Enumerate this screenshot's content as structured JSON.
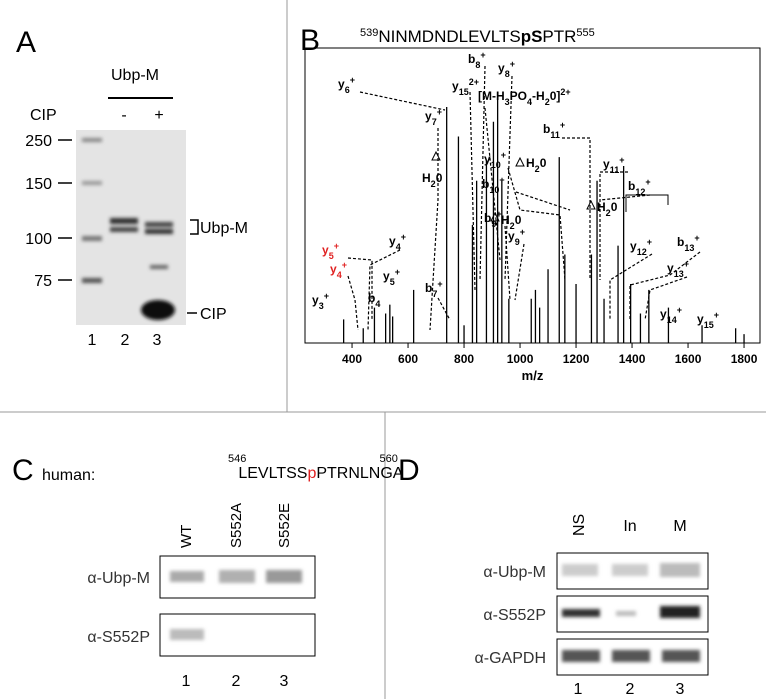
{
  "panels": {
    "A": {
      "label": "A",
      "treatment_header": "Ubp-M",
      "row_label": "CIP",
      "treatments": [
        "-",
        "+"
      ],
      "markers": [
        250,
        150,
        100,
        75
      ],
      "band_labels": [
        "Ubp-M",
        "CIP"
      ],
      "lanes": [
        1,
        2,
        3
      ]
    },
    "B": {
      "label": "B",
      "peptide": {
        "start": "539",
        "seq1": "NINMDNDLEVLTS",
        "site": "pS",
        "seq2": "PTR",
        "end": "555"
      },
      "spectrum": {
        "xlabel": "m/z",
        "xlim": [
          232,
          1857
        ],
        "ylim": [
          0,
          100
        ],
        "xticks": [
          400,
          600,
          800,
          1000,
          1200,
          1400,
          1600,
          1800
        ],
        "peaks_mz": [
          370,
          440,
          480,
          520,
          535,
          545,
          620,
          738,
          780,
          800,
          830,
          845,
          880,
          905,
          920,
          935,
          960,
          1040,
          1055,
          1070,
          1100,
          1140,
          1160,
          1200,
          1255,
          1275,
          1300,
          1350,
          1370,
          1395,
          1430,
          1460,
          1530,
          1650,
          1770,
          1800
        ],
        "peaks_intensity": [
          8,
          5,
          12,
          10,
          13,
          9,
          18,
          80,
          70,
          6,
          40,
          55,
          62,
          75,
          85,
          55,
          15,
          15,
          18,
          12,
          25,
          63,
          30,
          20,
          30,
          55,
          15,
          33,
          60,
          20,
          10,
          18,
          12,
          6,
          5,
          3
        ]
      },
      "ions": [
        {
          "parts": [
            {
              "t": "y"
            },
            {
              "t": "6",
              "sub": true
            },
            {
              "t": "+",
              "sup": true
            }
          ]
        },
        {
          "parts": [
            {
              "t": "y"
            },
            {
              "t": "15",
              "sub": true
            },
            {
              "t": "2+",
              "sup": true
            }
          ]
        },
        {
          "parts": [
            {
              "t": "b"
            },
            {
              "t": "8",
              "sub": true
            },
            {
              "t": "+",
              "sup": true
            }
          ]
        },
        {
          "parts": [
            {
              "t": "y"
            },
            {
              "t": "8",
              "sub": true
            },
            {
              "t": "+",
              "sup": true
            }
          ]
        },
        {
          "parts": [
            {
              "t": "[M-H"
            },
            {
              "t": "3",
              "sub": true
            },
            {
              "t": "PO"
            },
            {
              "t": "4",
              "sub": true
            },
            {
              "t": "-H"
            },
            {
              "t": "2",
              "sub": true
            },
            {
              "t": "0]"
            },
            {
              "t": "2+",
              "sup": true
            }
          ]
        },
        {
          "parts": [
            {
              "t": "y"
            },
            {
              "t": "7",
              "sub": true
            },
            {
              "t": "+",
              "sup": true
            }
          ]
        },
        {
          "parts": [
            {
              "t": "H"
            },
            {
              "t": "2",
              "sub": true
            },
            {
              "t": "0"
            }
          ]
        },
        {
          "parts": [
            {
              "t": "b"
            },
            {
              "t": "11",
              "sub": true
            },
            {
              "t": "+",
              "sup": true
            }
          ]
        },
        {
          "parts": [
            {
              "t": "y"
            },
            {
              "t": "10",
              "sub": true
            },
            {
              "t": "+",
              "sup": true
            }
          ]
        },
        {
          "parts": [
            {
              "t": "H"
            },
            {
              "t": "2",
              "sub": true
            },
            {
              "t": "0"
            }
          ]
        },
        {
          "parts": [
            {
              "t": "y"
            },
            {
              "t": "11",
              "sub": true
            },
            {
              "t": "+",
              "sup": true
            }
          ]
        },
        {
          "parts": [
            {
              "t": "b"
            },
            {
              "t": "10",
              "sub": true
            },
            {
              "t": "+",
              "sup": true
            }
          ]
        },
        {
          "parts": [
            {
              "t": "b"
            },
            {
              "t": "12",
              "sub": true
            },
            {
              "t": "+",
              "sup": true
            }
          ]
        },
        {
          "parts": [
            {
              "t": "H"
            },
            {
              "t": "2",
              "sub": true
            },
            {
              "t": "0"
            }
          ]
        },
        {
          "parts": [
            {
              "t": "H"
            },
            {
              "t": "2",
              "sub": true
            },
            {
              "t": "0"
            }
          ]
        },
        {
          "parts": [
            {
              "t": "b"
            },
            {
              "t": "9",
              "sub": true
            },
            {
              "t": "+",
              "sup": true
            }
          ]
        },
        {
          "parts": [
            {
              "t": "y"
            },
            {
              "t": "9",
              "sub": true
            },
            {
              "t": "+",
              "sup": true
            }
          ]
        },
        {
          "parts": [
            {
              "t": "y"
            },
            {
              "t": "12",
              "sub": true
            },
            {
              "t": "+",
              "sup": true
            }
          ]
        },
        {
          "parts": [
            {
              "t": "b"
            },
            {
              "t": "13",
              "sub": true
            },
            {
              "t": "+",
              "sup": true
            }
          ]
        },
        {
          "parts": [
            {
              "t": "y"
            },
            {
              "t": "13",
              "sub": true
            },
            {
              "t": "+",
              "sup": true
            }
          ]
        },
        {
          "color": "#e02020",
          "parts": [
            {
              "t": "y"
            },
            {
              "t": "5",
              "sub": true
            },
            {
              "t": "+",
              "sup": true
            }
          ]
        },
        {
          "color": "#e02020",
          "parts": [
            {
              "t": "y"
            },
            {
              "t": "4",
              "sub": true
            },
            {
              "t": "+",
              "sup": true
            }
          ]
        },
        {
          "parts": [
            {
              "t": "y"
            },
            {
              "t": "4",
              "sub": true
            },
            {
              "t": "+",
              "sup": true
            }
          ]
        },
        {
          "parts": [
            {
              "t": "y"
            },
            {
              "t": "5",
              "sub": true
            },
            {
              "t": "+",
              "sup": true
            }
          ]
        },
        {
          "parts": [
            {
              "t": "y"
            },
            {
              "t": "3",
              "sub": true
            },
            {
              "t": "+",
              "sup": true
            }
          ]
        },
        {
          "parts": [
            {
              "t": "b"
            },
            {
              "t": "4",
              "sub": true
            }
          ]
        },
        {
          "parts": [
            {
              "t": "b"
            },
            {
              "t": "7",
              "sub": true
            },
            {
              "t": "+",
              "sup": true
            }
          ]
        },
        {
          "parts": [
            {
              "t": "y"
            },
            {
              "t": "14",
              "sub": true
            },
            {
              "t": "+",
              "sup": true
            }
          ]
        },
        {
          "parts": [
            {
              "t": "y"
            },
            {
              "t": "15",
              "sub": true
            },
            {
              "t": "+",
              "sup": true
            }
          ]
        }
      ]
    },
    "C": {
      "label": "C",
      "species": "human:",
      "peptide": {
        "start": "546",
        "seq1": "LEVLTSS",
        "site": "p",
        "seq2": "PTRNLNGA",
        "end": "560"
      },
      "lane_headers": [
        "WT",
        "S552A",
        "S552E"
      ],
      "rows": [
        "α-Ubp-M",
        "α-S552P"
      ],
      "lanes": [
        1,
        2,
        3
      ]
    },
    "D": {
      "label": "D",
      "lane_headers": [
        "NS",
        "In",
        "M"
      ],
      "rows": [
        "α-Ubp-M",
        "α-S552P",
        "α-GAPDH"
      ],
      "lanes": [
        1,
        2,
        3
      ]
    }
  }
}
